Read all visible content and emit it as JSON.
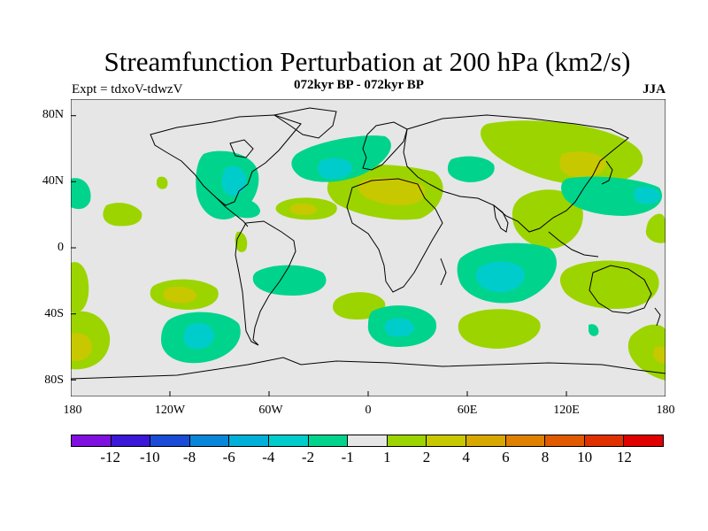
{
  "header": {
    "title": "Streamfunction Perturbation at 200 hPa (km2/s)",
    "subtitle": "072kyr BP - 072kyr BP",
    "experiment": "Expt = tdxoV-tdwzV",
    "season": "JJA"
  },
  "axes": {
    "lat_labels": [
      "80N",
      "40N",
      "0",
      "40S",
      "80S"
    ],
    "lon_labels": [
      "180",
      "120W",
      "60W",
      "0",
      "60E",
      "120E",
      "180"
    ]
  },
  "colorbar": {
    "colors": [
      "#7f10e0",
      "#3b18d8",
      "#1a4cd8",
      "#0a86d8",
      "#00b0d8",
      "#00cccc",
      "#00d48c",
      "#e6e6e6",
      "#9cd400",
      "#c8c800",
      "#d8a800",
      "#e08000",
      "#e05a00",
      "#e03000",
      "#e00000"
    ],
    "labels": [
      "-12",
      "-10",
      "-8",
      "-6",
      "-4",
      "-2",
      "-1",
      "1",
      "2",
      "4",
      "6",
      "8",
      "10",
      "12"
    ]
  },
  "legend_colors": {
    "neutral": "#e6e6e6",
    "neg1": "#00d48c",
    "neg2": "#00cccc",
    "pos1": "#9cd400",
    "pos2": "#c8c800"
  }
}
